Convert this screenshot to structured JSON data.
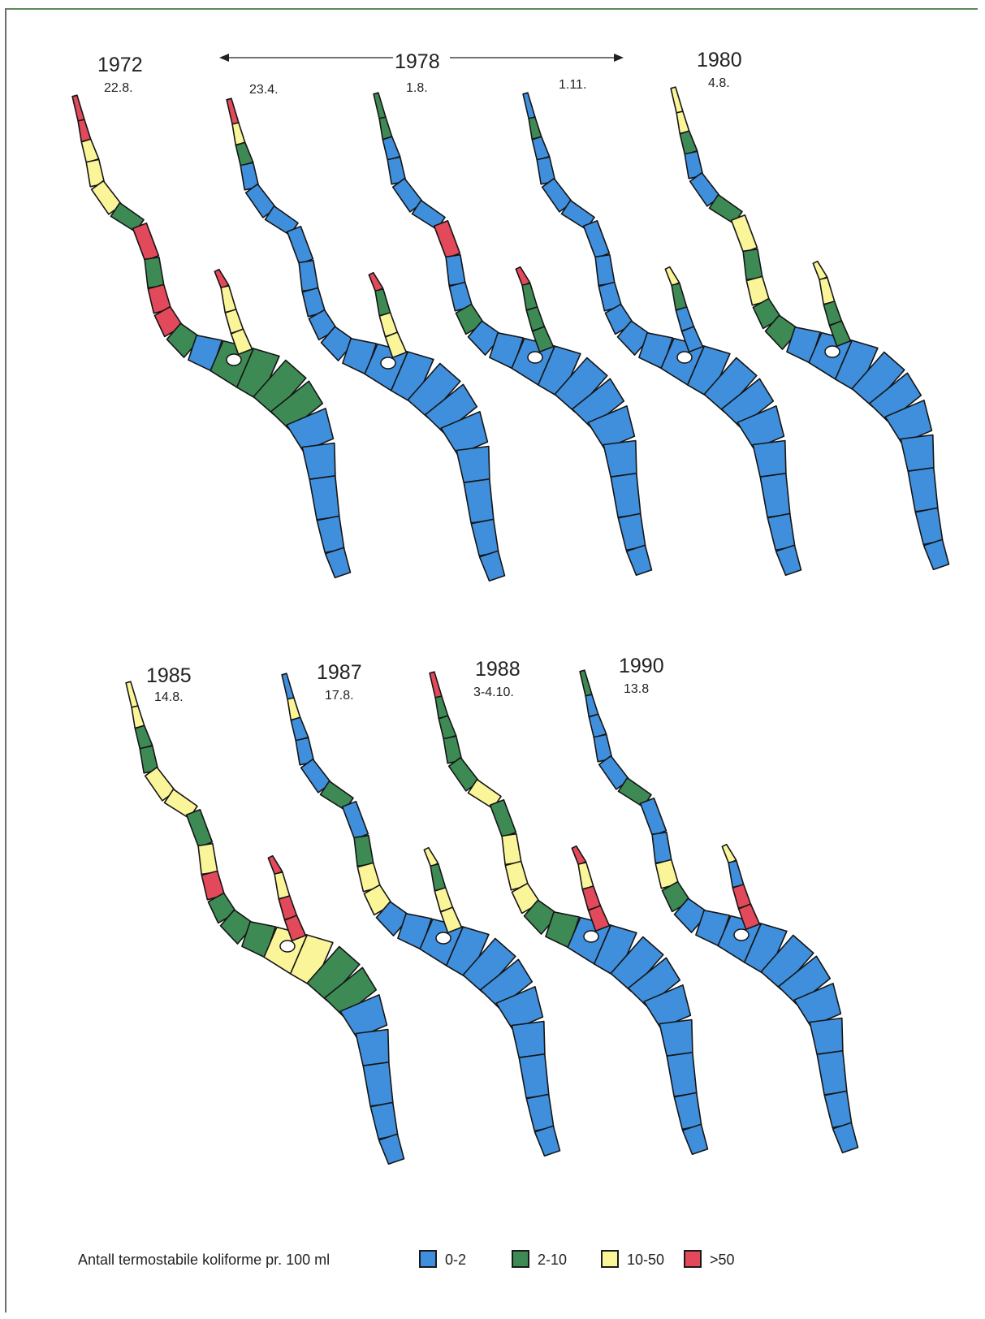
{
  "colors": {
    "class_0_2": "#3f8fdc",
    "class_2_10": "#3e8a55",
    "class_10_50": "#fbf59a",
    "class_gt_50": "#e2495a",
    "outline": "#151515"
  },
  "top_row": {
    "y1972": {
      "year": "1972",
      "date": "22.8."
    },
    "period_1978": {
      "year": "1978"
    },
    "d1978a": {
      "date": "23.4."
    },
    "d1978b": {
      "date": "1.8."
    },
    "d1978c": {
      "date": "1.11."
    },
    "y1980": {
      "year": "1980",
      "date": "4.8."
    }
  },
  "bottom_row": {
    "y1985": {
      "year": "1985",
      "date": "14.8."
    },
    "y1987": {
      "year": "1987",
      "date": "17.8."
    },
    "y1988": {
      "year": "1988",
      "date": "3-4.10."
    },
    "y1990": {
      "year": "1990",
      "date": "13.8"
    }
  },
  "legend": {
    "title": "Antall termostabile koliforme pr. 100 ml",
    "items": [
      {
        "label": "0-2",
        "color": "#3f8fdc"
      },
      {
        "label": "2-10",
        "color": "#3e8a55"
      },
      {
        "label": "10-50",
        "color": "#fbf59a"
      },
      {
        "label": ">50",
        "color": "#e2495a"
      }
    ]
  },
  "maps": [
    {
      "id": "1972-22.8",
      "segments": [
        "gt_50",
        "gt_50",
        "10_50",
        "10_50",
        "10_50",
        "2_10",
        "gt_50",
        "2_10",
        "gt_50",
        "gt_50",
        "2_10",
        "0_2",
        "2_10",
        "2_10",
        "2_10",
        "2_10",
        "0_2",
        "0_2",
        "0_2"
      ],
      "arm": [
        "gt_50",
        "10_50",
        "10_50"
      ]
    },
    {
      "id": "1978-23.4",
      "segments": [
        "gt_50",
        "10_50",
        "2_10",
        "0_2",
        "0_2",
        "0_2",
        "0_2",
        "0_2",
        "0_2",
        "0_2",
        "0_2",
        "0_2",
        "0_2",
        "0_2",
        "0_2",
        "0_2",
        "0_2",
        "0_2",
        "0_2"
      ],
      "arm": [
        "gt_50",
        "2_10",
        "10_50"
      ]
    },
    {
      "id": "1978-1.8",
      "segments": [
        "2_10",
        "2_10",
        "0_2",
        "0_2",
        "0_2",
        "0_2",
        "gt_50",
        "0_2",
        "0_2",
        "2_10",
        "0_2",
        "0_2",
        "0_2",
        "0_2",
        "0_2",
        "0_2",
        "0_2",
        "0_2",
        "0_2"
      ],
      "arm": [
        "gt_50",
        "2_10",
        "2_10"
      ]
    },
    {
      "id": "1978-1.11",
      "segments": [
        "0_2",
        "2_10",
        "0_2",
        "0_2",
        "0_2",
        "0_2",
        "0_2",
        "0_2",
        "0_2",
        "0_2",
        "0_2",
        "0_2",
        "0_2",
        "0_2",
        "0_2",
        "0_2",
        "0_2",
        "0_2",
        "0_2"
      ],
      "arm": [
        "10_50",
        "2_10",
        "0_2"
      ]
    },
    {
      "id": "1980-4.8",
      "segments": [
        "10_50",
        "10_50",
        "2_10",
        "0_2",
        "0_2",
        "2_10",
        "10_50",
        "2_10",
        "10_50",
        "2_10",
        "2_10",
        "0_2",
        "0_2",
        "0_2",
        "0_2",
        "0_2",
        "0_2",
        "0_2",
        "0_2"
      ],
      "arm": [
        "10_50",
        "10_50",
        "2_10"
      ]
    },
    {
      "id": "1985-14.8",
      "segments": [
        "10_50",
        "10_50",
        "2_10",
        "2_10",
        "10_50",
        "10_50",
        "2_10",
        "10_50",
        "gt_50",
        "2_10",
        "2_10",
        "2_10",
        "10_50",
        "10_50",
        "2_10",
        "2_10",
        "0_2",
        "0_2",
        "0_2"
      ],
      "arm": [
        "gt_50",
        "10_50",
        "gt_50"
      ]
    },
    {
      "id": "1987-17.8",
      "segments": [
        "0_2",
        "10_50",
        "0_2",
        "0_2",
        "0_2",
        "2_10",
        "0_2",
        "2_10",
        "10_50",
        "10_50",
        "0_2",
        "0_2",
        "0_2",
        "0_2",
        "0_2",
        "0_2",
        "0_2",
        "0_2",
        "0_2"
      ],
      "arm": [
        "10_50",
        "2_10",
        "10_50"
      ]
    },
    {
      "id": "1988-3-4.10",
      "segments": [
        "gt_50",
        "2_10",
        "2_10",
        "2_10",
        "2_10",
        "10_50",
        "2_10",
        "10_50",
        "10_50",
        "10_50",
        "2_10",
        "2_10",
        "0_2",
        "0_2",
        "0_2",
        "0_2",
        "0_2",
        "0_2",
        "0_2"
      ],
      "arm": [
        "gt_50",
        "10_50",
        "gt_50"
      ]
    },
    {
      "id": "1990-13.8",
      "segments": [
        "2_10",
        "0_2",
        "0_2",
        "0_2",
        "0_2",
        "2_10",
        "0_2",
        "0_2",
        "10_50",
        "2_10",
        "0_2",
        "0_2",
        "0_2",
        "0_2",
        "0_2",
        "0_2",
        "0_2",
        "0_2",
        "0_2"
      ],
      "arm": [
        "10_50",
        "0_2",
        "gt_50"
      ]
    }
  ]
}
